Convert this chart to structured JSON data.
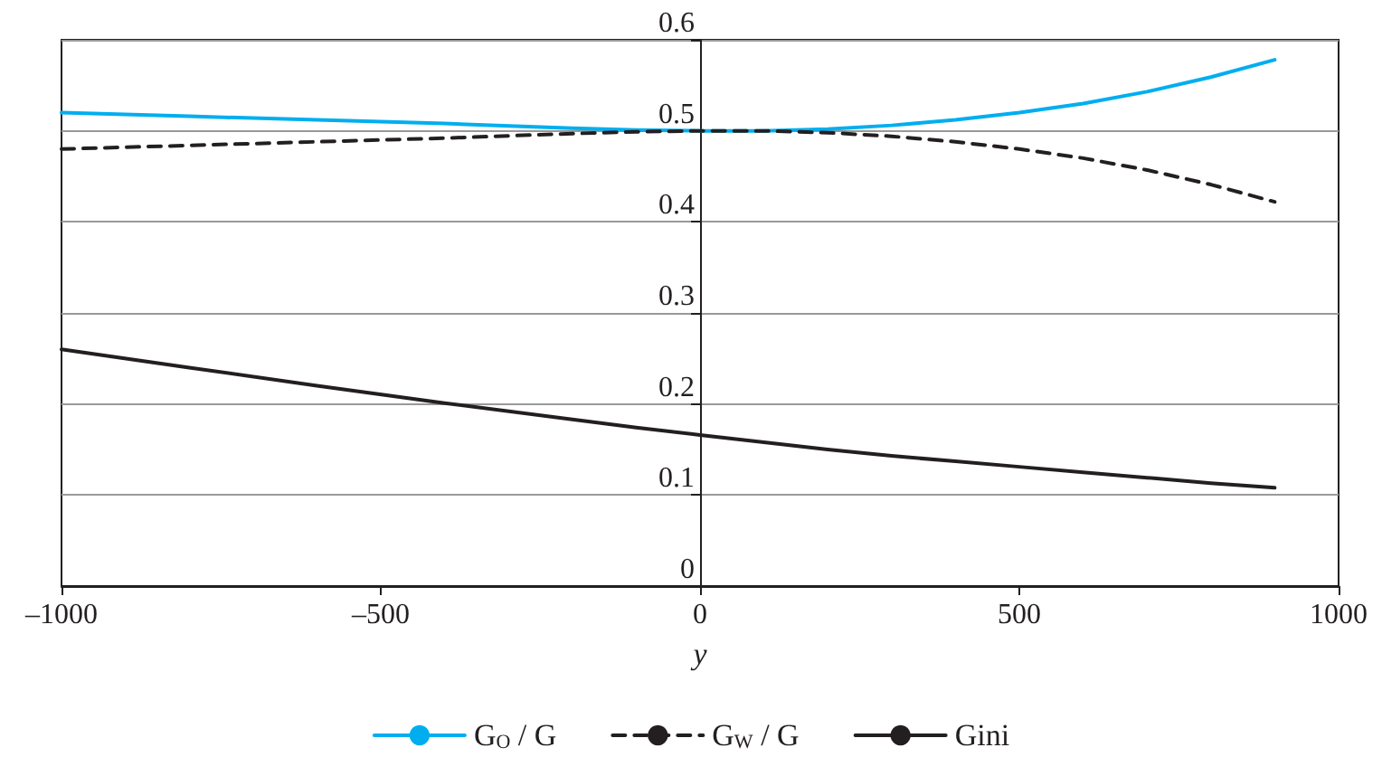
{
  "chart_data": {
    "type": "line",
    "xlabel": "y",
    "x": [
      -1000,
      -800,
      -600,
      -400,
      -200,
      -100,
      0,
      100,
      200,
      300,
      400,
      500,
      600,
      700,
      800,
      900
    ],
    "series": [
      {
        "name": "G$_{O}$ / G",
        "color": "#00aeef",
        "line_style": "solid",
        "values": [
          0.52,
          0.516,
          0.512,
          0.508,
          0.503,
          0.501,
          0.5,
          0.5,
          0.502,
          0.506,
          0.512,
          0.52,
          0.53,
          0.543,
          0.559,
          0.578
        ]
      },
      {
        "name": "G$_{W}$ / G",
        "color": "#231f20",
        "line_style": "dashed",
        "values": [
          0.48,
          0.484,
          0.488,
          0.492,
          0.497,
          0.499,
          0.5,
          0.5,
          0.498,
          0.494,
          0.488,
          0.48,
          0.47,
          0.457,
          0.441,
          0.422
        ]
      },
      {
        "name": "Gini",
        "color": "#231f20",
        "line_style": "solid",
        "values": [
          0.26,
          0.24,
          0.22,
          0.201,
          0.183,
          0.174,
          0.166,
          0.158,
          0.15,
          0.143,
          0.137,
          0.131,
          0.125,
          0.119,
          0.113,
          0.108
        ]
      }
    ],
    "xlim": [
      -1000,
      1000
    ],
    "xticks": [
      {
        "value": -1000,
        "label": "–1000"
      },
      {
        "value": -500,
        "label": "–500"
      },
      0,
      500,
      1000
    ],
    "ylim": [
      0,
      0.6
    ],
    "yticks": [
      0,
      0.1,
      0.2,
      0.3,
      0.4,
      0.5,
      0.6
    ],
    "grid": "y",
    "legend": "bottom",
    "marker": "none"
  }
}
